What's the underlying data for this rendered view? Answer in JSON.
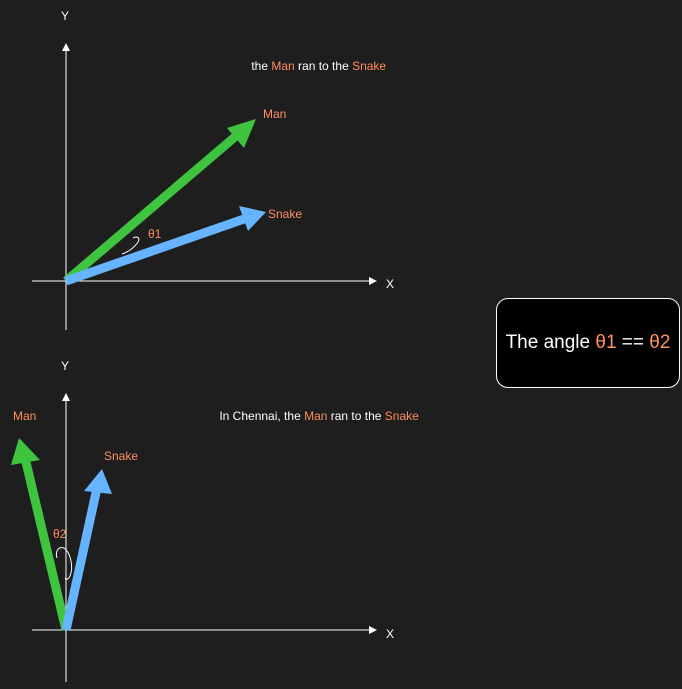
{
  "colors": {
    "background": "#1e1e1e",
    "axis": "#ffffff",
    "man_vector": "#3fc43f",
    "snake_vector": "#66b3ff",
    "highlight": "#ff8f5e"
  },
  "top_diagram": {
    "y_axis_label": "Y",
    "x_axis_label": "X",
    "sentence": {
      "prefix": "the ",
      "word1": "Man",
      "middle": " ran to the ",
      "word2": "Snake"
    },
    "man_label": "Man",
    "snake_label": "Snake",
    "angle_label": "θ1"
  },
  "bottom_diagram": {
    "y_axis_label": "Y",
    "x_axis_label": "X",
    "sentence": {
      "prefix": "In Chennai, the ",
      "word1": "Man",
      "middle": " ran to the ",
      "word2": "Snake"
    },
    "man_label": "Man",
    "snake_label": "Snake",
    "angle_label": "θ2"
  },
  "callout": {
    "prefix": "The angle ",
    "theta1": "θ1",
    "operator": " == ",
    "theta2": "θ2"
  }
}
